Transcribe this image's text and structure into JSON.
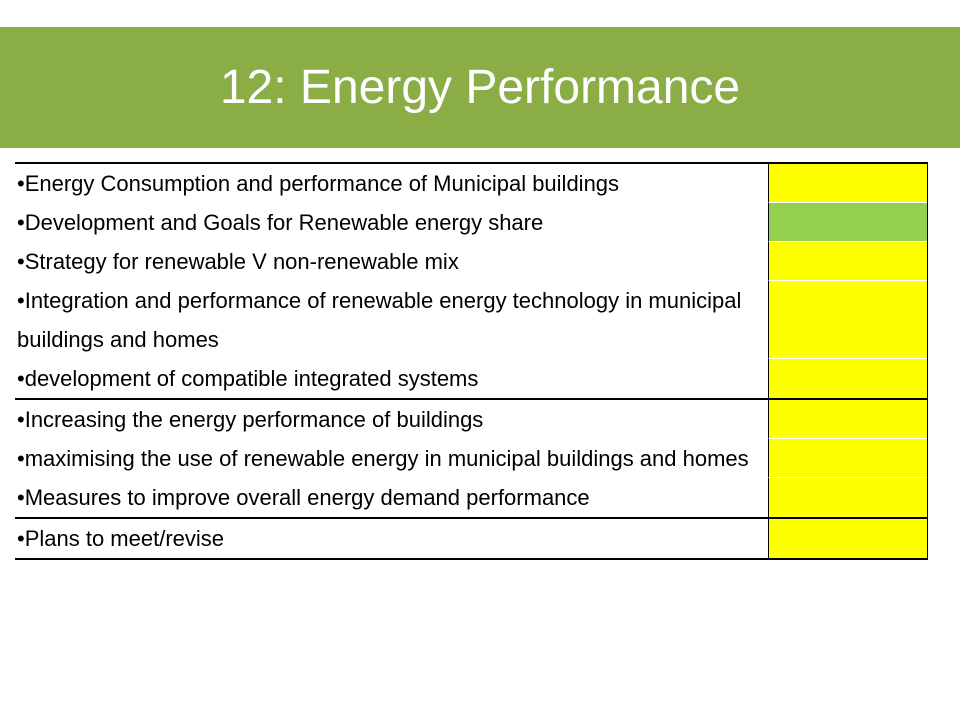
{
  "header": {
    "title": "12: Energy Performance"
  },
  "table": {
    "groups": [
      {
        "rows": [
          {
            "text": "•Energy Consumption and performance of Municipal buildings",
            "color": "#ffff00"
          },
          {
            "text": "•Development and Goals for Renewable energy share",
            "color": "#92d050"
          },
          {
            "text": "•Strategy for renewable V non-renewable mix",
            "color": "#ffff00"
          },
          {
            "text": "•Integration and performance of renewable energy technology in municipal buildings and homes",
            "color": "#ffff00"
          },
          {
            "text": "•development of compatible integrated systems",
            "color": "#ffff00"
          }
        ]
      },
      {
        "rows": [
          {
            "text": "•Increasing the energy performance of buildings",
            "color": "#ffff00"
          },
          {
            "text": "•maximising the use of renewable energy in municipal buildings and homes",
            "color": "#ffff00"
          },
          {
            "text": "•Measures to improve overall energy demand performance",
            "color": "#ffff00"
          }
        ]
      },
      {
        "rows": [
          {
            "text": "•Plans to meet/revise",
            "color": "#ffff00"
          }
        ]
      }
    ]
  }
}
